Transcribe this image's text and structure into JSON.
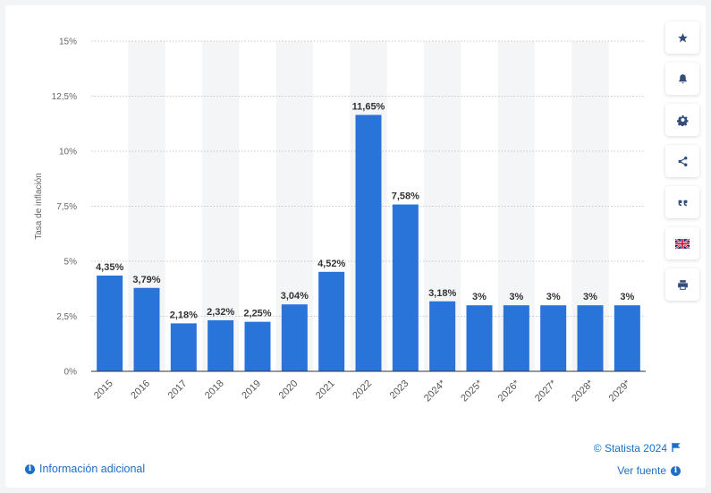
{
  "chart_data": {
    "type": "bar",
    "ylabel": "Tasa de inflación",
    "categories": [
      "2015",
      "2016",
      "2017",
      "2018",
      "2019",
      "2020",
      "2021",
      "2022",
      "2023",
      "2024*",
      "2025*",
      "2026*",
      "2027*",
      "2028*",
      "2029*"
    ],
    "values": [
      4.35,
      3.79,
      2.18,
      2.32,
      2.25,
      3.04,
      4.52,
      11.65,
      7.58,
      3.18,
      3,
      3,
      3,
      3,
      3
    ],
    "value_labels": [
      "4,35%",
      "3,79%",
      "2,18%",
      "2,32%",
      "2,25%",
      "3,04%",
      "4,52%",
      "11,65%",
      "7,58%",
      "3,18%",
      "3%",
      "3%",
      "3%",
      "3%",
      "3%"
    ],
    "yticks": [
      0,
      2.5,
      5,
      7.5,
      10,
      12.5,
      15
    ],
    "ytick_labels": [
      "0%",
      "2,5%",
      "5%",
      "7,5%",
      "10%",
      "12,5%",
      "15%"
    ],
    "ylim": [
      0,
      15
    ],
    "grid": true,
    "colors": {
      "bar": "#2874d8",
      "band": "#f4f5f7",
      "grid": "#c8c8c8",
      "axis": "#333333"
    }
  },
  "sidebar": {
    "buttons": [
      "star-icon",
      "bell-icon",
      "gear-icon",
      "share-icon",
      "quote-icon",
      "flag-uk-icon",
      "print-icon"
    ]
  },
  "footer": {
    "info_label": "Información adicional",
    "copyright": "© Statista 2024",
    "source_label": "Ver fuente",
    "link_color": "#1d6ec8"
  }
}
